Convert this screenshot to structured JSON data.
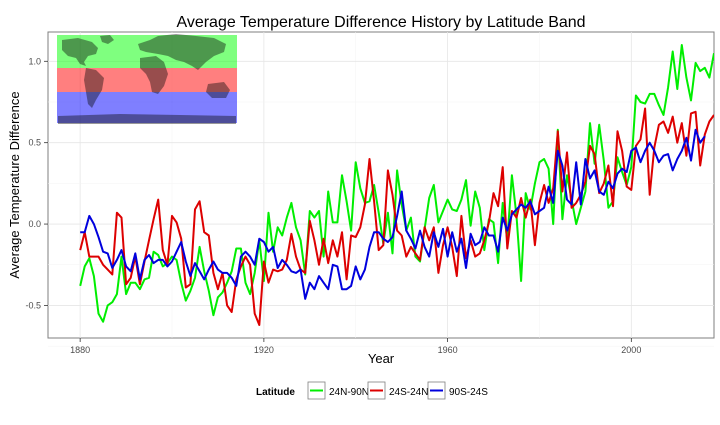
{
  "chart_data": {
    "type": "line",
    "title": "Average Temperature Difference History by Latitude Band",
    "xlabel": "Year",
    "ylabel": "Average Temperature Difference",
    "xlim": [
      1873,
      2018
    ],
    "ylim": [
      -0.7,
      1.18
    ],
    "xticks": [
      1880,
      1920,
      1960,
      2000
    ],
    "yticks": [
      -0.5,
      0.0,
      0.5,
      1.0
    ],
    "ytick_labels": [
      "-0.5",
      "0.0",
      "0.5",
      "1.0"
    ],
    "grid": true,
    "legend": {
      "title": "Latitude",
      "placement": "bottom",
      "entries": [
        "24N-90N",
        "24S-24N",
        "90S-24S"
      ]
    },
    "inset": {
      "type": "world-map-latitude-bands",
      "placement": "top-left",
      "bands": [
        {
          "name": "24N-90N",
          "color": "#00ff00"
        },
        {
          "name": "24S-24N",
          "color": "#ff0000"
        },
        {
          "name": "90S-24S",
          "color": "#0000ff"
        }
      ]
    },
    "x_start": 1880,
    "series": [
      {
        "name": "24N-90N",
        "color": "#00ee00",
        "values": [
          -0.38,
          -0.26,
          -0.21,
          -0.32,
          -0.55,
          -0.6,
          -0.5,
          -0.48,
          -0.43,
          -0.2,
          -0.43,
          -0.36,
          -0.36,
          -0.4,
          -0.34,
          -0.33,
          -0.17,
          -0.19,
          -0.26,
          -0.24,
          -0.2,
          -0.22,
          -0.36,
          -0.47,
          -0.41,
          -0.33,
          -0.14,
          -0.29,
          -0.41,
          -0.56,
          -0.45,
          -0.42,
          -0.36,
          -0.29,
          -0.15,
          -0.15,
          -0.36,
          -0.43,
          -0.3,
          -0.1,
          -0.35,
          0.07,
          -0.17,
          -0.02,
          -0.07,
          0.04,
          0.13,
          -0.02,
          -0.1,
          -0.31,
          0.08,
          0.04,
          0.08,
          -0.2,
          0.2,
          0.01,
          0.01,
          0.3,
          0.14,
          -0.04,
          0.38,
          0.22,
          0.13,
          0.14,
          0.24,
          0.07,
          -0.12,
          0.07,
          -0.18,
          0.33,
          0.12,
          -0.04,
          0.04,
          -0.2,
          -0.23,
          -0.03,
          0.16,
          0.24,
          0.01,
          0.08,
          0.15,
          0.09,
          0.08,
          0.15,
          0.27,
          -0.01,
          0.2,
          0.1,
          -0.16,
          0.03,
          0.01,
          -0.24,
          0.13,
          -0.1,
          0.3,
          0.05,
          -0.35,
          0.19,
          0.09,
          0.25,
          0.38,
          0.4,
          0.34,
          0.0,
          0.58,
          0.03,
          0.3,
          0.15,
          0.0,
          0.1,
          0.2,
          0.62,
          0.37,
          0.61,
          0.39,
          0.1,
          0.14,
          0.41,
          0.32,
          0.24,
          0.35,
          0.79,
          0.75,
          0.74,
          0.8,
          0.8,
          0.73,
          0.67,
          0.84,
          1.06,
          0.83,
          1.1,
          0.9,
          0.76,
          0.99,
          0.94,
          0.96,
          0.9,
          1.05
        ]
      },
      {
        "name": "24S-24N",
        "color": "#dd0000",
        "values": [
          -0.16,
          -0.05,
          -0.2,
          -0.2,
          -0.2,
          -0.25,
          -0.28,
          -0.31,
          0.07,
          0.04,
          -0.37,
          -0.33,
          -0.2,
          -0.37,
          -0.23,
          -0.1,
          0.03,
          0.15,
          -0.16,
          -0.25,
          0.05,
          0.01,
          -0.09,
          -0.39,
          -0.37,
          0.09,
          0.14,
          -0.05,
          -0.07,
          -0.3,
          -0.4,
          -0.3,
          -0.5,
          -0.54,
          -0.34,
          -0.26,
          -0.2,
          -0.25,
          -0.55,
          -0.62,
          -0.23,
          -0.36,
          -0.28,
          -0.29,
          -0.28,
          -0.22,
          -0.06,
          -0.2,
          -0.28,
          -0.3,
          0.02,
          -0.1,
          -0.25,
          -0.09,
          -0.24,
          -0.1,
          -0.2,
          -0.05,
          -0.34,
          -0.07,
          -0.08,
          -0.02,
          0.12,
          0.4,
          0.14,
          -0.16,
          -0.13,
          0.33,
          0.18,
          -0.04,
          -0.07,
          -0.2,
          -0.14,
          -0.18,
          -0.22,
          -0.02,
          -0.1,
          -0.02,
          -0.3,
          -0.13,
          -0.02,
          -0.14,
          -0.32,
          0.05,
          -0.21,
          -0.1,
          -0.2,
          -0.18,
          -0.1,
          0.01,
          0.19,
          0.11,
          0.35,
          -0.15,
          0.08,
          0.04,
          0.16,
          0.04,
          0.15,
          -0.13,
          0.13,
          0.24,
          0.13,
          0.22,
          0.57,
          0.2,
          0.44,
          0.1,
          0.13,
          0.18,
          0.26,
          0.48,
          0.43,
          0.19,
          0.25,
          0.36,
          0.11,
          0.57,
          0.45,
          0.23,
          0.21,
          0.48,
          0.52,
          0.71,
          0.18,
          0.47,
          0.61,
          0.63,
          0.56,
          0.66,
          0.5,
          0.62,
          0.42,
          0.68,
          0.69,
          0.36,
          0.55,
          0.63,
          0.67
        ]
      },
      {
        "name": "90S-24S",
        "color": "#0000dd",
        "values": [
          -0.05,
          -0.05,
          0.05,
          0.0,
          -0.08,
          -0.17,
          -0.18,
          -0.27,
          -0.22,
          -0.16,
          -0.26,
          -0.29,
          -0.18,
          -0.34,
          -0.22,
          -0.19,
          -0.24,
          -0.22,
          -0.22,
          -0.26,
          -0.23,
          -0.17,
          -0.11,
          -0.23,
          -0.32,
          -0.24,
          -0.29,
          -0.34,
          -0.28,
          -0.23,
          -0.28,
          -0.3,
          -0.3,
          -0.33,
          -0.38,
          -0.2,
          -0.17,
          -0.2,
          -0.25,
          -0.09,
          -0.11,
          -0.17,
          -0.14,
          -0.27,
          -0.22,
          -0.25,
          -0.29,
          -0.3,
          -0.28,
          -0.46,
          -0.36,
          -0.4,
          -0.32,
          -0.36,
          -0.4,
          -0.25,
          -0.26,
          -0.4,
          -0.4,
          -0.38,
          -0.26,
          -0.34,
          -0.28,
          -0.14,
          -0.05,
          -0.05,
          -0.09,
          -0.11,
          -0.08,
          0.05,
          0.2,
          -0.04,
          -0.09,
          -0.15,
          -0.04,
          -0.14,
          -0.2,
          -0.05,
          -0.14,
          -0.03,
          -0.2,
          -0.05,
          -0.17,
          -0.09,
          -0.27,
          -0.06,
          -0.13,
          -0.11,
          -0.02,
          -0.07,
          -0.07,
          -0.17,
          0.04,
          -0.04,
          0.06,
          0.09,
          0.12,
          0.1,
          0.14,
          0.06,
          0.08,
          0.1,
          0.23,
          0.13,
          0.45,
          0.36,
          0.15,
          0.12,
          0.38,
          0.12,
          0.4,
          0.28,
          0.33,
          0.2,
          0.18,
          0.26,
          0.22,
          0.31,
          0.34,
          0.32,
          0.45,
          0.47,
          0.38,
          0.45,
          0.5,
          0.45,
          0.38,
          0.42,
          0.43,
          0.33,
          0.4,
          0.45,
          0.53,
          0.39,
          0.58,
          0.5,
          0.54
        ]
      }
    ]
  }
}
